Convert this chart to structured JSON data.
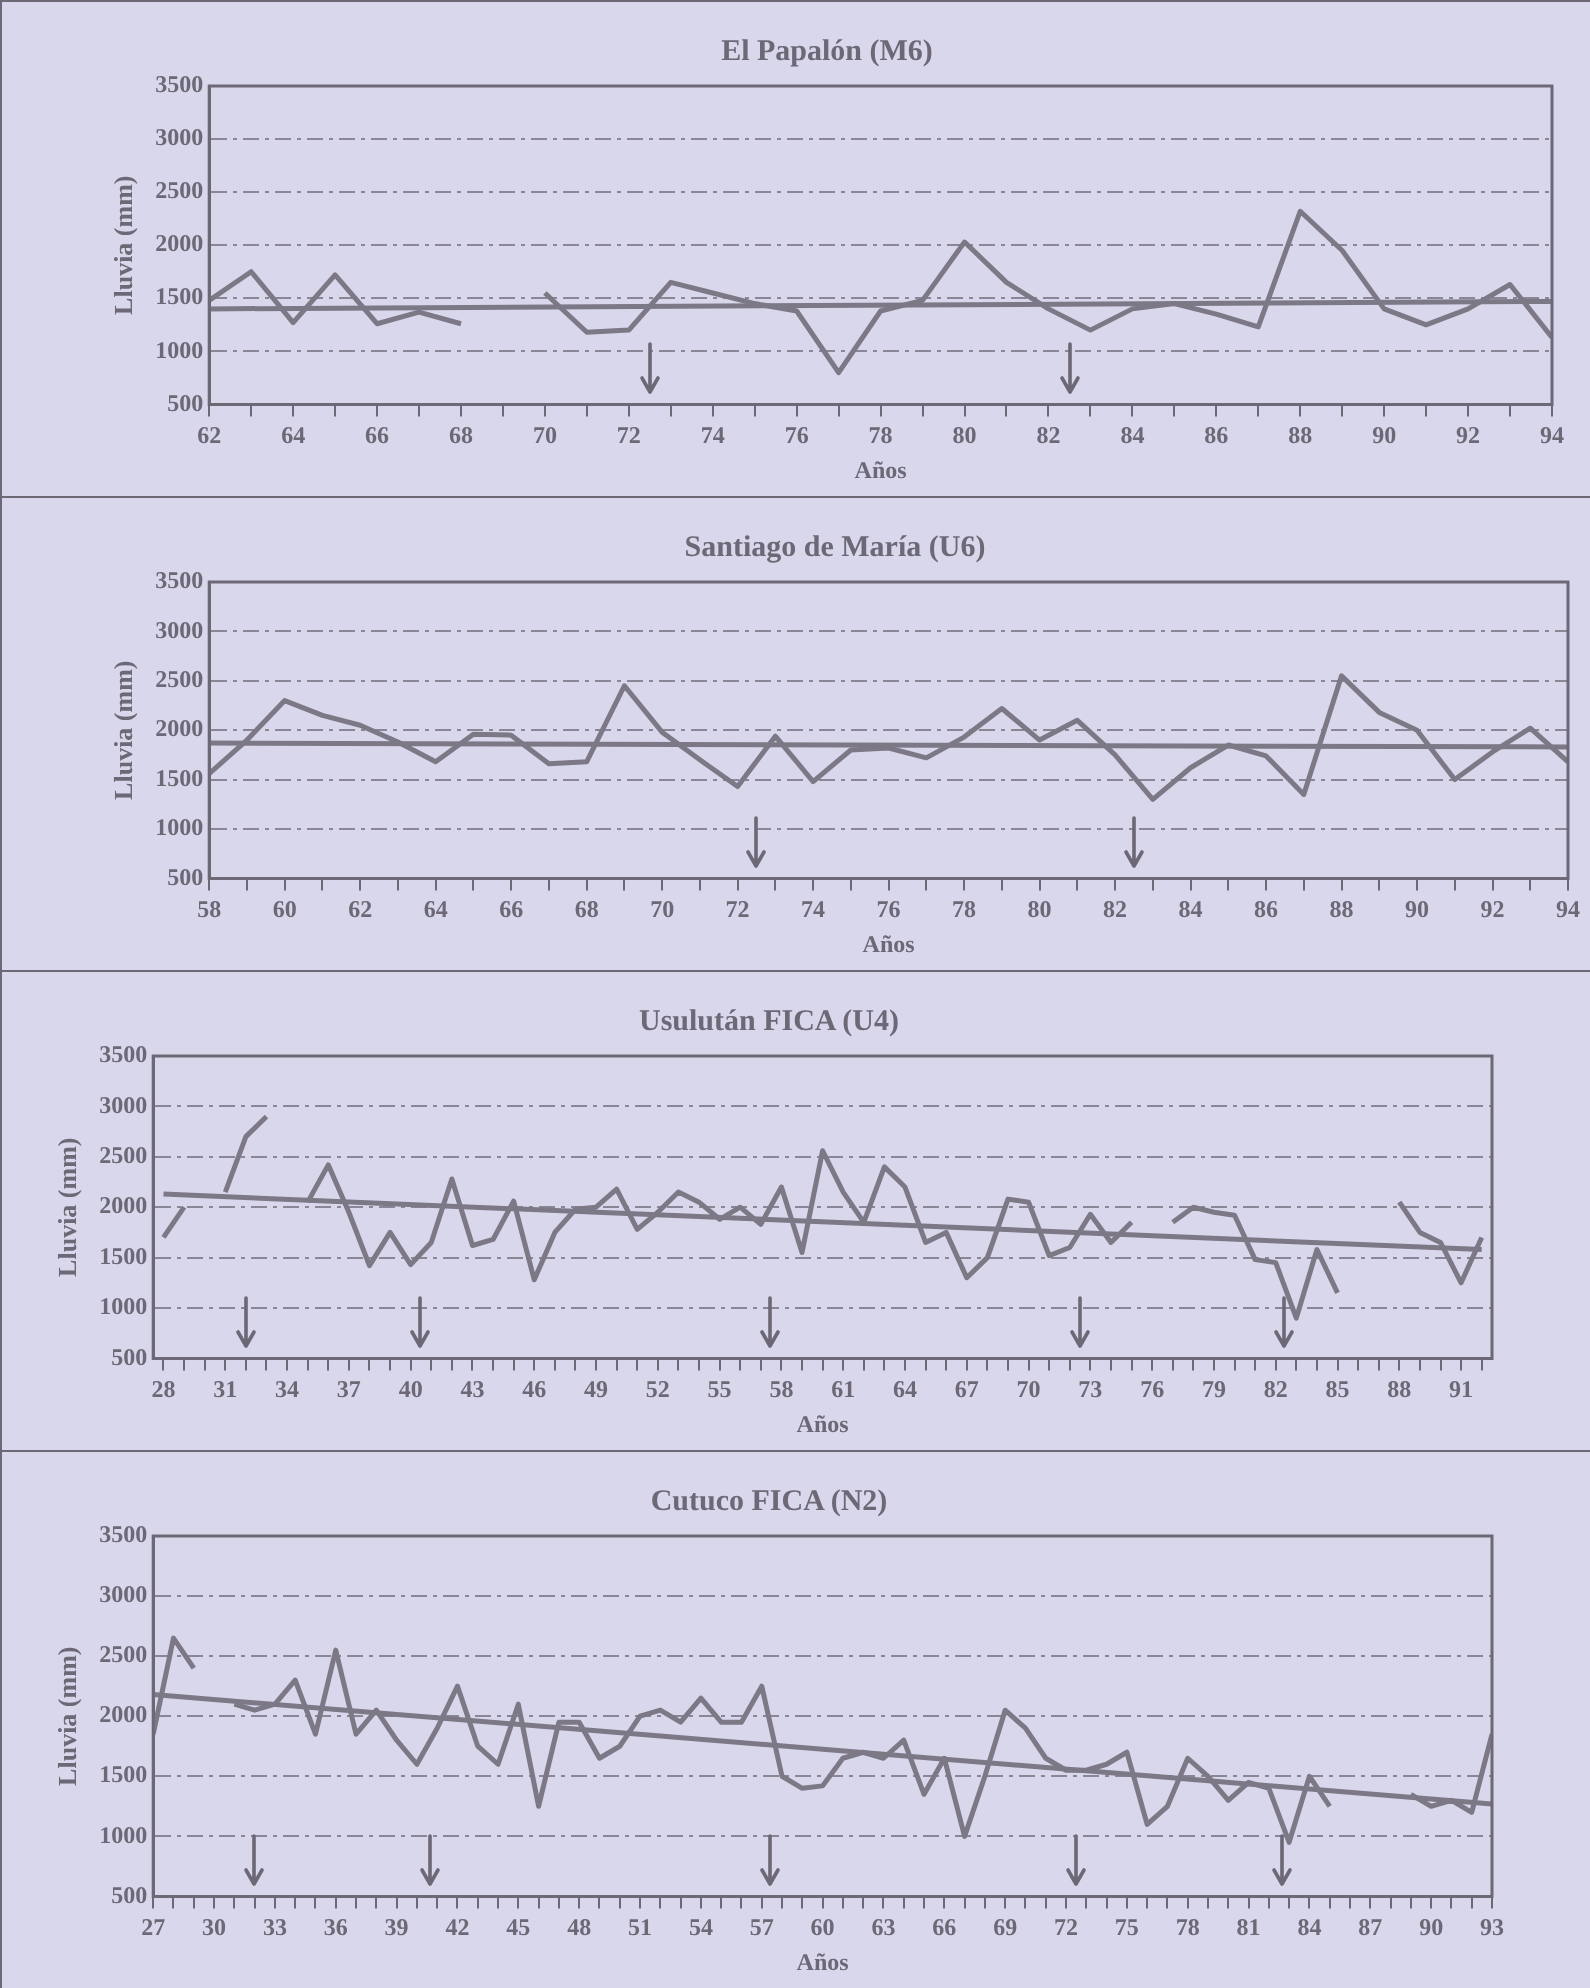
{
  "chart_data": [
    {
      "type": "line",
      "title": "El Papalón (M6)",
      "xlabel": "Años",
      "ylabel": "Lluvia (mm)",
      "grid": "y",
      "xlim": [
        62,
        94
      ],
      "ylim": [
        500,
        3500
      ],
      "yticks": [
        500,
        1000,
        1500,
        2000,
        2500,
        3000,
        3500
      ],
      "xticks": [
        62,
        {
          "value": 63,
          "label": null
        },
        64,
        {
          "value": 65,
          "label": null
        },
        66,
        {
          "value": 67,
          "label": null
        },
        68,
        {
          "value": 69,
          "label": null
        },
        70,
        {
          "value": 71,
          "label": null
        },
        72,
        {
          "value": 73,
          "label": null
        },
        74,
        {
          "value": 75,
          "label": null
        },
        76,
        {
          "value": 77,
          "label": null
        },
        78,
        {
          "value": 79,
          "label": null
        },
        80,
        {
          "value": 81,
          "label": null
        },
        82,
        {
          "value": 83,
          "label": null
        },
        84,
        {
          "value": 85,
          "label": null
        },
        86,
        {
          "value": 87,
          "label": null
        },
        88,
        {
          "value": 89,
          "label": null
        },
        90,
        {
          "value": 91,
          "label": null
        },
        92,
        {
          "value": 93,
          "label": null
        },
        94
      ],
      "x": [
        62,
        63,
        64,
        65,
        66,
        67,
        68,
        69,
        70,
        71,
        72,
        73,
        74,
        75,
        76,
        77,
        78,
        79,
        80,
        81,
        82,
        83,
        84,
        85,
        86,
        87,
        88,
        89,
        90,
        91,
        92,
        93,
        94
      ],
      "series": [
        {
          "color": "#7c7886",
          "values": [
            1480,
            1750,
            1270,
            1720,
            1260,
            1370,
            1260,
            null,
            1550,
            1180,
            1200,
            1650,
            1550,
            1450,
            1380,
            800,
            1380,
            1480,
            2030,
            1650,
            1400,
            1200,
            1400,
            1450,
            1350,
            1230,
            2320,
            1950,
            1400,
            1250,
            1400,
            1630,
            1130
          ]
        },
        {
          "type": "line",
          "color": "#7c7886",
          "x": [
            62,
            94
          ],
          "values": [
            1400,
            1470
          ]
        }
      ],
      "ref_lines": [
        {
          "axis": "x",
          "value": 72.5
        },
        {
          "axis": "x",
          "value": 82.5
        }
      ]
    },
    {
      "type": "line",
      "title": "Santiago de María (U6)",
      "xlabel": "Años",
      "ylabel": "Lluvia (mm)",
      "grid": "y",
      "xlim": [
        58,
        94
      ],
      "ylim": [
        500,
        3500
      ],
      "yticks": [
        500,
        1000,
        1500,
        2000,
        2500,
        3000,
        3500
      ],
      "xticks": [
        58,
        {
          "value": 59,
          "label": null
        },
        60,
        {
          "value": 61,
          "label": null
        },
        62,
        {
          "value": 63,
          "label": null
        },
        64,
        {
          "value": 65,
          "label": null
        },
        66,
        {
          "value": 67,
          "label": null
        },
        68,
        {
          "value": 69,
          "label": null
        },
        70,
        {
          "value": 71,
          "label": null
        },
        72,
        {
          "value": 73,
          "label": null
        },
        74,
        {
          "value": 75,
          "label": null
        },
        76,
        {
          "value": 77,
          "label": null
        },
        78,
        {
          "value": 79,
          "label": null
        },
        80,
        {
          "value": 81,
          "label": null
        },
        82,
        {
          "value": 83,
          "label": null
        },
        84,
        {
          "value": 85,
          "label": null
        },
        86,
        {
          "value": 87,
          "label": null
        },
        88,
        {
          "value": 89,
          "label": null
        },
        90,
        {
          "value": 91,
          "label": null
        },
        92,
        {
          "value": 93,
          "label": null
        },
        94
      ],
      "x": [
        58,
        59,
        60,
        61,
        62,
        63,
        64,
        65,
        66,
        67,
        68,
        69,
        70,
        71,
        72,
        73,
        74,
        75,
        76,
        77,
        78,
        79,
        80,
        81,
        82,
        83,
        84,
        85,
        86,
        87,
        88,
        89,
        90,
        91,
        92,
        93,
        94
      ],
      "series": [
        {
          "color": "#7c7886",
          "values": [
            1560,
            1900,
            2300,
            2150,
            2050,
            1880,
            1680,
            1960,
            1950,
            1660,
            1680,
            2450,
            1980,
            1700,
            1430,
            1940,
            1480,
            1800,
            1820,
            1720,
            1930,
            2220,
            1900,
            2100,
            1750,
            1300,
            1620,
            1850,
            1740,
            1350,
            2550,
            2180,
            2000,
            1500,
            1780,
            2020,
            1680
          ]
        },
        {
          "type": "line",
          "color": "#7c7886",
          "x": [
            58,
            94
          ],
          "values": [
            1870,
            1830
          ]
        }
      ],
      "ref_lines": [
        {
          "axis": "x",
          "value": 72.5
        },
        {
          "axis": "x",
          "value": 82.5
        }
      ]
    },
    {
      "type": "line",
      "title": "Usulután FICA (U4)",
      "xlabel": "Años",
      "ylabel": "Lluvia (mm)",
      "grid": "y",
      "xlim": [
        27.5,
        92.5
      ],
      "ylim": [
        500,
        3500
      ],
      "yticks": [
        500,
        1000,
        1500,
        2000,
        2500,
        3000,
        3500
      ],
      "xticks": [
        28,
        {
          "value": 29,
          "label": null
        },
        {
          "value": 30,
          "label": null
        },
        31,
        {
          "value": 32,
          "label": null
        },
        {
          "value": 33,
          "label": null
        },
        34,
        {
          "value": 35,
          "label": null
        },
        {
          "value": 36,
          "label": null
        },
        37,
        {
          "value": 38,
          "label": null
        },
        {
          "value": 39,
          "label": null
        },
        40,
        {
          "value": 41,
          "label": null
        },
        {
          "value": 42,
          "label": null
        },
        43,
        {
          "value": 44,
          "label": null
        },
        {
          "value": 45,
          "label": null
        },
        46,
        {
          "value": 47,
          "label": null
        },
        {
          "value": 48,
          "label": null
        },
        49,
        {
          "value": 50,
          "label": null
        },
        {
          "value": 51,
          "label": null
        },
        52,
        {
          "value": 53,
          "label": null
        },
        {
          "value": 54,
          "label": null
        },
        55,
        {
          "value": 56,
          "label": null
        },
        {
          "value": 57,
          "label": null
        },
        58,
        {
          "value": 59,
          "label": null
        },
        {
          "value": 60,
          "label": null
        },
        61,
        {
          "value": 62,
          "label": null
        },
        {
          "value": 63,
          "label": null
        },
        64,
        {
          "value": 65,
          "label": null
        },
        {
          "value": 66,
          "label": null
        },
        67,
        {
          "value": 68,
          "label": null
        },
        {
          "value": 69,
          "label": null
        },
        70,
        {
          "value": 71,
          "label": null
        },
        {
          "value": 72,
          "label": null
        },
        73,
        {
          "value": 74,
          "label": null
        },
        {
          "value": 75,
          "label": null
        },
        76,
        {
          "value": 77,
          "label": null
        },
        {
          "value": 78,
          "label": null
        },
        79,
        {
          "value": 80,
          "label": null
        },
        {
          "value": 81,
          "label": null
        },
        82,
        {
          "value": 83,
          "label": null
        },
        {
          "value": 84,
          "label": null
        },
        85,
        {
          "value": 86,
          "label": null
        },
        {
          "value": 87,
          "label": null
        },
        88,
        {
          "value": 89,
          "label": null
        },
        {
          "value": 90,
          "label": null
        },
        91,
        {
          "value": 92,
          "label": null
        }
      ],
      "x": [
        28,
        29,
        30,
        31,
        32,
        33,
        34,
        35,
        36,
        37,
        38,
        39,
        40,
        41,
        42,
        43,
        44,
        45,
        46,
        47,
        48,
        49,
        50,
        51,
        52,
        53,
        54,
        55,
        56,
        57,
        58,
        59,
        60,
        61,
        62,
        63,
        64,
        65,
        66,
        67,
        68,
        69,
        70,
        71,
        72,
        73,
        74,
        75,
        76,
        77,
        78,
        79,
        80,
        81,
        82,
        83,
        84,
        85,
        86,
        87,
        88,
        89,
        90,
        91,
        92
      ],
      "series": [
        {
          "color": "#7c7886",
          "values": [
            1700,
            2000,
            null,
            2150,
            2700,
            2900,
            null,
            2050,
            2420,
            1950,
            1420,
            1750,
            1430,
            1650,
            2280,
            1620,
            1680,
            2060,
            1280,
            1750,
            1980,
            2000,
            2180,
            1780,
            1950,
            2150,
            2050,
            1880,
            2000,
            1830,
            2200,
            1550,
            2560,
            2150,
            1850,
            2400,
            2200,
            1650,
            1750,
            1300,
            1500,
            2080,
            2050,
            1520,
            1600,
            1930,
            1650,
            1850,
            null,
            1850,
            2000,
            1950,
            1920,
            1480,
            1450,
            900,
            1580,
            1150,
            null,
            null,
            2050,
            1750,
            1650,
            1250,
            1700
          ]
        },
        {
          "type": "line",
          "color": "#7c7886",
          "x": [
            28,
            92
          ],
          "values": [
            2130,
            1580
          ]
        }
      ],
      "ref_lines": [
        {
          "axis": "x",
          "value": 32
        },
        {
          "axis": "x",
          "value": 40.5
        },
        {
          "axis": "x",
          "value": 57.4
        },
        {
          "axis": "x",
          "value": 72.5
        },
        {
          "axis": "x",
          "value": 82.4
        }
      ]
    },
    {
      "type": "line",
      "title": "Cutuco FICA (N2)",
      "xlabel": "Años",
      "ylabel": "Lluvia (mm)",
      "grid": "y",
      "xlim": [
        27,
        93
      ],
      "ylim": [
        500,
        3500
      ],
      "yticks": [
        500,
        1000,
        1500,
        2000,
        2500,
        3000,
        3500
      ],
      "xticks": [
        27,
        {
          "value": 28,
          "label": null
        },
        {
          "value": 29,
          "label": null
        },
        30,
        {
          "value": 31,
          "label": null
        },
        {
          "value": 32,
          "label": null
        },
        33,
        {
          "value": 34,
          "label": null
        },
        {
          "value": 35,
          "label": null
        },
        36,
        {
          "value": 37,
          "label": null
        },
        {
          "value": 38,
          "label": null
        },
        39,
        {
          "value": 40,
          "label": null
        },
        {
          "value": 41,
          "label": null
        },
        42,
        {
          "value": 43,
          "label": null
        },
        {
          "value": 44,
          "label": null
        },
        45,
        {
          "value": 46,
          "label": null
        },
        {
          "value": 47,
          "label": null
        },
        48,
        {
          "value": 49,
          "label": null
        },
        {
          "value": 50,
          "label": null
        },
        51,
        {
          "value": 52,
          "label": null
        },
        {
          "value": 53,
          "label": null
        },
        54,
        {
          "value": 55,
          "label": null
        },
        {
          "value": 56,
          "label": null
        },
        57,
        {
          "value": 58,
          "label": null
        },
        {
          "value": 59,
          "label": null
        },
        60,
        {
          "value": 61,
          "label": null
        },
        {
          "value": 62,
          "label": null
        },
        63,
        {
          "value": 64,
          "label": null
        },
        {
          "value": 65,
          "label": null
        },
        66,
        {
          "value": 67,
          "label": null
        },
        {
          "value": 68,
          "label": null
        },
        69,
        {
          "value": 70,
          "label": null
        },
        {
          "value": 71,
          "label": null
        },
        72,
        {
          "value": 73,
          "label": null
        },
        {
          "value": 74,
          "label": null
        },
        75,
        {
          "value": 76,
          "label": null
        },
        {
          "value": 77,
          "label": null
        },
        78,
        {
          "value": 79,
          "label": null
        },
        {
          "value": 80,
          "label": null
        },
        81,
        {
          "value": 82,
          "label": null
        },
        {
          "value": 83,
          "label": null
        },
        84,
        {
          "value": 85,
          "label": null
        },
        {
          "value": 86,
          "label": null
        },
        87,
        {
          "value": 88,
          "label": null
        },
        {
          "value": 89,
          "label": null
        },
        90,
        {
          "value": 91,
          "label": null
        },
        {
          "value": 92,
          "label": null
        },
        93
      ],
      "x": [
        27,
        28,
        29,
        30,
        31,
        32,
        33,
        34,
        35,
        36,
        37,
        38,
        39,
        40,
        41,
        42,
        43,
        44,
        45,
        46,
        47,
        48,
        49,
        50,
        51,
        52,
        53,
        54,
        55,
        56,
        57,
        58,
        59,
        60,
        61,
        62,
        63,
        64,
        65,
        66,
        67,
        68,
        69,
        70,
        71,
        72,
        73,
        74,
        75,
        76,
        77,
        78,
        79,
        80,
        81,
        82,
        83,
        84,
        85,
        86,
        87,
        88,
        89,
        90,
        91,
        92,
        93
      ],
      "series": [
        {
          "color": "#7c7886",
          "values": [
            1850,
            2650,
            2400,
            null,
            2100,
            2050,
            2100,
            2300,
            1850,
            2550,
            1850,
            2050,
            1800,
            1600,
            1900,
            2250,
            1750,
            1600,
            2100,
            1250,
            1950,
            1950,
            1650,
            1750,
            2000,
            2050,
            1950,
            2150,
            1950,
            1950,
            2250,
            1500,
            1400,
            1420,
            1650,
            1700,
            1650,
            1800,
            1350,
            1650,
            1000,
            1500,
            2050,
            1900,
            1650,
            1550,
            1550,
            1600,
            1700,
            1100,
            1250,
            1650,
            1500,
            1300,
            1450,
            1400,
            950,
            1500,
            1250,
            null,
            null,
            null,
            1350,
            1250,
            1300,
            1200,
            1850
          ]
        },
        {
          "type": "line",
          "color": "#7c7886",
          "x": [
            27,
            93
          ],
          "values": [
            2180,
            1270
          ]
        }
      ],
      "ref_lines": [
        {
          "axis": "x",
          "value": 32
        },
        {
          "axis": "x",
          "value": 40.6
        },
        {
          "axis": "x",
          "value": 57.4
        },
        {
          "axis": "x",
          "value": 72.5
        },
        {
          "axis": "x",
          "value": 82.6
        }
      ]
    }
  ]
}
